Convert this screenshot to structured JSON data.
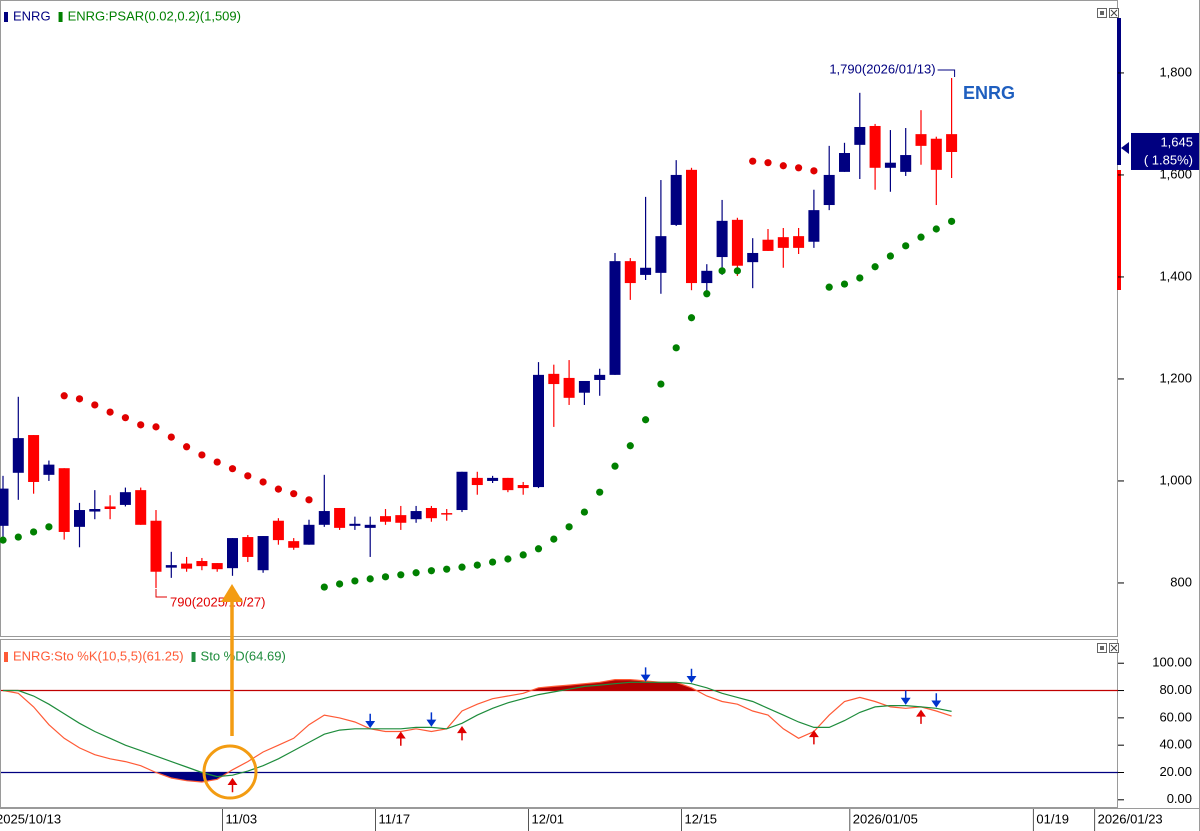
{
  "chart_data": [
    {
      "type": "candlestick",
      "series": [
        {
          "name": "ENRG",
          "color": "#000080",
          "up_color": "#000080",
          "down_color": "#ff0000",
          "open": [
            912,
            1016,
            1090,
            1012,
            1025,
            910,
            940,
            950,
            953,
            982,
            922,
            830,
            838,
            843,
            839,
            829,
            890,
            825,
            922,
            882,
            875,
            914,
            947,
            912,
            908,
            931,
            933,
            925,
            947,
            937,
            943,
            1006,
            1000,
            1006,
            992,
            988,
            1210,
            1202,
            1173,
            1198,
            1208,
            1431,
            1404,
            1408,
            1502,
            1610,
            1388,
            1439,
            1512,
            1429,
            1473,
            1478,
            1480,
            1469,
            1541,
            1606,
            1659,
            1696,
            1614,
            1606,
            1680,
            1671,
            1680,
            null,
            null,
            null,
            null,
            null,
            null,
            null,
            null,
            null,
            null
          ],
          "high": [
            1010,
            1165,
            1090,
            1040,
            1025,
            957,
            982,
            972,
            987,
            987,
            943,
            861,
            851,
            849,
            839,
            888,
            894,
            892,
            927,
            888,
            924,
            1012,
            947,
            930,
            930,
            945,
            951,
            951,
            951,
            945,
            1018,
            1018,
            1010,
            1006,
            998,
            1233,
            1228,
            1237,
            1196,
            1220,
            1447,
            1437,
            1557,
            1590,
            1629,
            1614,
            1425,
            1551,
            1516,
            1476,
            1494,
            1496,
            1496,
            1571,
            1657,
            1663,
            1761,
            1700,
            1688,
            1692,
            1727,
            1675,
            1790,
            null,
            null,
            null,
            null,
            null,
            null,
            null,
            null,
            null,
            null
          ],
          "low": [
            890,
            963,
            975,
            1000,
            885,
            870,
            925,
            925,
            950,
            914,
            790,
            810,
            822,
            825,
            822,
            814,
            841,
            820,
            875,
            865,
            875,
            910,
            904,
            904,
            851,
            914,
            904,
            918,
            920,
            922,
            939,
            973,
            996,
            978,
            973,
            986,
            1106,
            1149,
            1149,
            1167,
            1208,
            1355,
            1394,
            1367,
            1500,
            1374,
            1365,
            1404,
            1402,
            1378,
            1451,
            1418,
            1445,
            1457,
            1531,
            1606,
            1592,
            1571,
            1567,
            1598,
            1620,
            1541,
            1594,
            null,
            null,
            null,
            null,
            null,
            null,
            null,
            null,
            null,
            null
          ],
          "close": [
            985,
            1084,
            998,
            1032,
            900,
            943,
            945,
            945,
            978,
            914,
            822,
            835,
            828,
            833,
            827,
            888,
            851,
            892,
            884,
            869,
            914,
            941,
            908,
            916,
            914,
            920,
            918,
            941,
            927,
            935,
            1018,
            992,
            1006,
            982,
            986,
            1208,
            1190,
            1163,
            1196,
            1208,
            1431,
            1388,
            1418,
            1480,
            1600,
            1388,
            1412,
            1510,
            1422,
            1447,
            1451,
            1457,
            1457,
            1531,
            1600,
            1643,
            1694,
            1614,
            1624,
            1639,
            1657,
            1610,
            1645,
            null,
            null,
            null,
            null,
            null,
            null,
            null,
            null,
            null,
            null
          ]
        },
        {
          "name": "ENRG:PSAR(0.02,0.2)(1,509)",
          "type": "psar",
          "color": "#008000",
          "above_color": "#e00000",
          "below_color": "#008000",
          "values": [
            884,
            890,
            900,
            910,
            1167,
            1161,
            1149,
            1135,
            1124,
            1110,
            1106,
            1086,
            1067,
            1051,
            1037,
            1024,
            1010,
            998,
            984,
            975,
            963,
            792,
            798,
            804,
            808,
            812,
            816,
            820,
            824,
            827,
            831,
            835,
            841,
            847,
            855,
            867,
            886,
            910,
            939,
            978,
            1029,
            1069,
            1120,
            1190,
            1261,
            1320,
            1367,
            1412,
            1412,
            1627,
            1624,
            1618,
            1614,
            1608,
            1380,
            1386,
            1398,
            1420,
            1441,
            1461,
            1478,
            1494,
            1509,
            null,
            null,
            null,
            null,
            null,
            null,
            null,
            null,
            null,
            null
          ]
        }
      ],
      "ylim": [
        696,
        1943
      ],
      "yticks": [
        800,
        {
          "value": 1000,
          "label": "1,000"
        },
        {
          "value": 1200,
          "label": "1,200"
        },
        {
          "value": 1400,
          "label": "1,400"
        },
        {
          "value": 1600,
          "label": "1,600"
        },
        {
          "value": 1800,
          "label": "1,800"
        }
      ],
      "annotations": [
        {
          "text": "1,790(2026/01/13)",
          "index": 62,
          "value": 1790,
          "color": "#000080"
        },
        {
          "text": "790(2025/10/27)",
          "index": 10,
          "value": 790,
          "color": "#e00000"
        }
      ],
      "symbol_label": {
        "text": "ENRG",
        "color": "#1f5fbf"
      },
      "last_price": {
        "value": 1645,
        "label": "1,645",
        "change": "( 1.85%)",
        "color": "#000080"
      }
    },
    {
      "type": "line",
      "categories": [
        "2025/10/13",
        null,
        null,
        null,
        null,
        null,
        null,
        null,
        null,
        null,
        null,
        null,
        null,
        null,
        null,
        "11/03",
        null,
        null,
        null,
        null,
        null,
        null,
        null,
        null,
        null,
        "11/17",
        null,
        null,
        null,
        null,
        null,
        null,
        null,
        null,
        null,
        "12/01",
        null,
        null,
        null,
        null,
        null,
        null,
        null,
        null,
        null,
        "12/15",
        null,
        null,
        null,
        null,
        null,
        null,
        null,
        null,
        null,
        null,
        "2026/01/05",
        null,
        null,
        null,
        null,
        null,
        null,
        null,
        null,
        null,
        null,
        null,
        "01/19",
        null,
        null,
        null,
        "2026/01/23"
      ],
      "series": [
        {
          "name": "ENRG:Sto %K(10,5,5)(61.25)",
          "color": "#ff5a36",
          "values": [
            80,
            78,
            68,
            55,
            45,
            38,
            33,
            30,
            28,
            25,
            20,
            16,
            14,
            13,
            15,
            22,
            28,
            35,
            40,
            45,
            55,
            62,
            60,
            57,
            52,
            50,
            50,
            52,
            50,
            52,
            65,
            70,
            74,
            76,
            78,
            82,
            83,
            84,
            85,
            86,
            88,
            88,
            87,
            86,
            86,
            82,
            76,
            72,
            70,
            65,
            62,
            52,
            45,
            50,
            62,
            72,
            75,
            72,
            68,
            67,
            68,
            65,
            61.25,
            null,
            null,
            null,
            null,
            null,
            null,
            null,
            null,
            null,
            null
          ]
        },
        {
          "name": "Sto %D(64.69)",
          "color": "#1e8c3c",
          "values": [
            80,
            80,
            76,
            70,
            63,
            56,
            50,
            45,
            40,
            36,
            32,
            28,
            24,
            20,
            17,
            18,
            21,
            25,
            30,
            36,
            42,
            48,
            51,
            52,
            52,
            52,
            52,
            53,
            53,
            52,
            56,
            62,
            67,
            71,
            74,
            77,
            79,
            81,
            83,
            84,
            85,
            86,
            86,
            86,
            86,
            85,
            82,
            78,
            75,
            72,
            67,
            62,
            57,
            53,
            53,
            58,
            64,
            68,
            69,
            69,
            68,
            67,
            64.69,
            null,
            null,
            null,
            null,
            null,
            null,
            null,
            null,
            null,
            null
          ]
        }
      ],
      "ylim": [
        -6,
        117
      ],
      "yticks": [
        {
          "value": 0,
          "label": "0.00"
        },
        {
          "value": 20,
          "label": "20.00"
        },
        {
          "value": 40,
          "label": "40.00"
        },
        {
          "value": 60,
          "label": "60.00"
        },
        {
          "value": 80,
          "label": "80.00"
        },
        {
          "value": 100,
          "label": "100.00"
        }
      ],
      "levels": [
        {
          "value": 80,
          "color": "#c00000",
          "fill": "#b00000",
          "fill_side": "above"
        },
        {
          "value": 20,
          "color": "#000080",
          "fill": "#000080",
          "fill_side": "below"
        }
      ],
      "signals": {
        "buy": [
          15,
          26,
          30,
          53,
          60
        ],
        "sell": [
          24,
          28,
          42,
          45,
          59,
          61
        ],
        "buy_color": "#e00000",
        "sell_color": "#0033cc"
      }
    }
  ]
}
